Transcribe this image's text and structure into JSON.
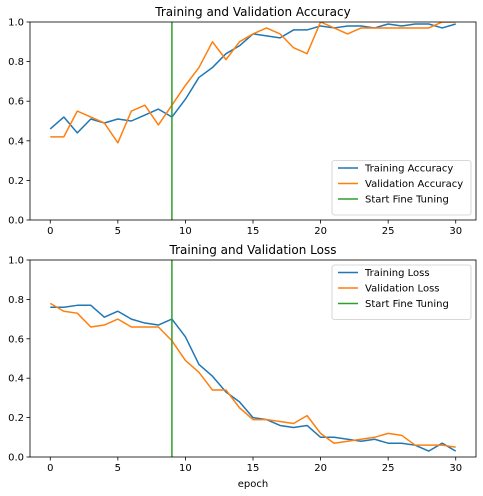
{
  "chart_data": [
    {
      "type": "line",
      "title": "Training and Validation Accuracy",
      "xlabel": "",
      "ylabel": "",
      "xlim": [
        -1.5,
        31.5
      ],
      "ylim": [
        0,
        1
      ],
      "xticks": [
        0,
        5,
        10,
        15,
        20,
        25,
        30
      ],
      "yticks": [
        0.0,
        0.2,
        0.4,
        0.6,
        0.8,
        1.0
      ],
      "legend_position": "lower-right",
      "series": [
        {
          "name": "Training Accuracy",
          "color": "#1f77b4",
          "x": [
            0,
            1,
            2,
            3,
            4,
            5,
            6,
            7,
            8,
            9,
            10,
            11,
            12,
            13,
            14,
            15,
            16,
            17,
            18,
            19,
            20,
            21,
            22,
            23,
            24,
            25,
            26,
            27,
            28,
            29,
            30
          ],
          "values": [
            0.46,
            0.52,
            0.44,
            0.51,
            0.49,
            0.51,
            0.5,
            0.53,
            0.56,
            0.52,
            0.61,
            0.72,
            0.77,
            0.84,
            0.88,
            0.94,
            0.93,
            0.92,
            0.96,
            0.96,
            0.98,
            0.97,
            0.98,
            0.98,
            0.97,
            0.99,
            0.98,
            0.99,
            0.99,
            0.97,
            0.99
          ]
        },
        {
          "name": "Validation Accuracy",
          "color": "#ff7f0e",
          "x": [
            0,
            1,
            2,
            3,
            4,
            5,
            6,
            7,
            8,
            9,
            10,
            11,
            12,
            13,
            14,
            15,
            16,
            17,
            18,
            19,
            20,
            21,
            22,
            23,
            24,
            25,
            26,
            27,
            28,
            29,
            30
          ],
          "values": [
            0.42,
            0.42,
            0.55,
            0.52,
            0.49,
            0.39,
            0.55,
            0.58,
            0.48,
            0.58,
            0.68,
            0.77,
            0.9,
            0.81,
            0.9,
            0.94,
            0.97,
            0.94,
            0.87,
            0.84,
            1.0,
            0.97,
            0.94,
            0.97,
            0.97,
            0.97,
            0.97,
            0.97,
            0.97,
            1.0,
            1.0
          ]
        },
        {
          "name": "Start Fine Tuning",
          "color": "#2ca02c",
          "x": [
            9,
            9
          ],
          "values": [
            0,
            1
          ]
        }
      ]
    },
    {
      "type": "line",
      "title": "Training and Validation Loss",
      "xlabel": "epoch",
      "ylabel": "",
      "xlim": [
        -1.5,
        31.5
      ],
      "ylim": [
        0,
        1
      ],
      "xticks": [
        0,
        5,
        10,
        15,
        20,
        25,
        30
      ],
      "yticks": [
        0.0,
        0.2,
        0.4,
        0.6,
        0.8,
        1.0
      ],
      "legend_position": "upper-right",
      "series": [
        {
          "name": "Training Loss",
          "color": "#1f77b4",
          "x": [
            0,
            1,
            2,
            3,
            4,
            5,
            6,
            7,
            8,
            9,
            10,
            11,
            12,
            13,
            14,
            15,
            16,
            17,
            18,
            19,
            20,
            21,
            22,
            23,
            24,
            25,
            26,
            27,
            28,
            29,
            30
          ],
          "values": [
            0.76,
            0.76,
            0.77,
            0.77,
            0.71,
            0.74,
            0.7,
            0.68,
            0.67,
            0.7,
            0.61,
            0.47,
            0.41,
            0.33,
            0.28,
            0.2,
            0.19,
            0.16,
            0.15,
            0.16,
            0.1,
            0.1,
            0.09,
            0.08,
            0.09,
            0.07,
            0.07,
            0.06,
            0.03,
            0.07,
            0.03
          ]
        },
        {
          "name": "Validation Loss",
          "color": "#ff7f0e",
          "x": [
            0,
            1,
            2,
            3,
            4,
            5,
            6,
            7,
            8,
            9,
            10,
            11,
            12,
            13,
            14,
            15,
            16,
            17,
            18,
            19,
            20,
            21,
            22,
            23,
            24,
            25,
            26,
            27,
            28,
            29,
            30
          ],
          "values": [
            0.78,
            0.74,
            0.73,
            0.66,
            0.67,
            0.7,
            0.66,
            0.66,
            0.66,
            0.59,
            0.49,
            0.43,
            0.34,
            0.34,
            0.25,
            0.19,
            0.19,
            0.18,
            0.17,
            0.21,
            0.12,
            0.07,
            0.08,
            0.09,
            0.1,
            0.12,
            0.11,
            0.06,
            0.06,
            0.06,
            0.05
          ]
        },
        {
          "name": "Start Fine Tuning",
          "color": "#2ca02c",
          "x": [
            9,
            9
          ],
          "values": [
            0,
            1
          ]
        }
      ]
    }
  ]
}
